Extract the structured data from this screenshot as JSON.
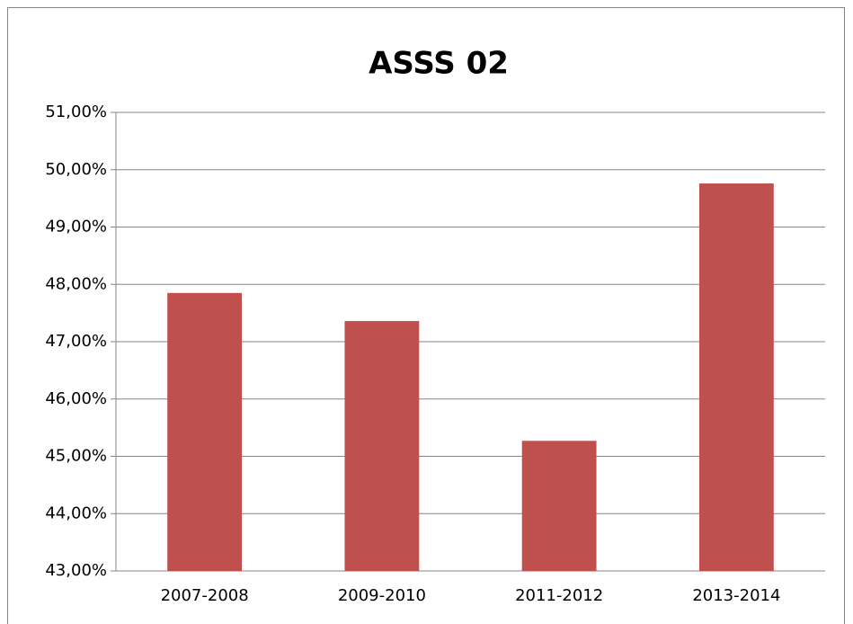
{
  "chart_data": {
    "type": "bar",
    "title": "ASSS 02",
    "categories": [
      "2007-2008",
      "2009-2010",
      "2011-2012",
      "2013-2014"
    ],
    "values": [
      47.85,
      47.36,
      45.27,
      49.76
    ],
    "color": "#c0504d",
    "ylim": [
      43,
      51
    ],
    "yticks": [
      {
        "value": 43,
        "label": "43,00%"
      },
      {
        "value": 44,
        "label": "44,00%"
      },
      {
        "value": 45,
        "label": "45,00%"
      },
      {
        "value": 46,
        "label": "46,00%"
      },
      {
        "value": 47,
        "label": "47,00%"
      },
      {
        "value": 48,
        "label": "48,00%"
      },
      {
        "value": 49,
        "label": "49,00%"
      },
      {
        "value": 50,
        "label": "50,00%"
      },
      {
        "value": 51,
        "label": "51,00%"
      }
    ],
    "grid": true
  }
}
